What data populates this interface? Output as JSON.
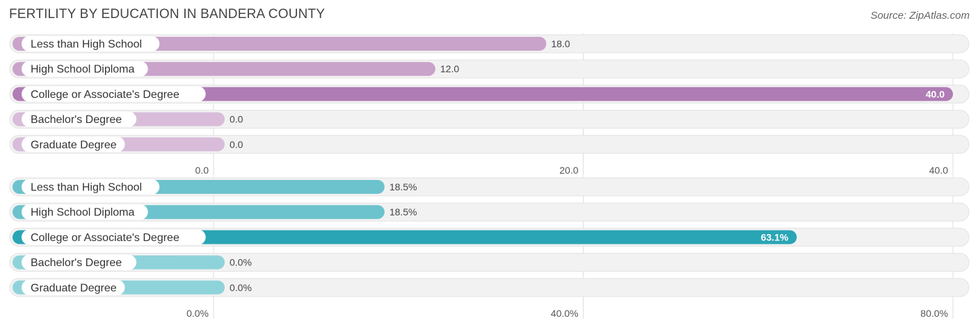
{
  "title": "FERTILITY BY EDUCATION IN BANDERA COUNTY",
  "source": "Source: ZipAtlas.com",
  "chart_data": [
    {
      "type": "bar",
      "orientation": "horizontal",
      "categories": [
        "Less than High School",
        "High School Diploma",
        "College or Associate's Degree",
        "Bachelor's Degree",
        "Graduate Degree"
      ],
      "values": [
        18.0,
        12.0,
        40.0,
        0.0,
        0.0
      ],
      "value_labels": [
        "18.0",
        "12.0",
        "40.0",
        "0.0",
        "0.0"
      ],
      "xlim": [
        0,
        40
      ],
      "ticks": [
        "0.0",
        "20.0",
        "40.0"
      ],
      "tick_values": [
        0,
        20,
        40
      ],
      "colors": [
        "#c9a3ca",
        "#c9a3ca",
        "#b07cb5",
        "#d8bcda",
        "#d8bcda"
      ],
      "highlight_index": 2,
      "grid": true
    },
    {
      "type": "bar",
      "orientation": "horizontal",
      "categories": [
        "Less than High School",
        "High School Diploma",
        "College or Associate's Degree",
        "Bachelor's Degree",
        "Graduate Degree"
      ],
      "values": [
        18.5,
        18.5,
        63.1,
        0.0,
        0.0
      ],
      "value_labels": [
        "18.5%",
        "18.5%",
        "63.1%",
        "0.0%",
        "0.0%"
      ],
      "xlim": [
        0,
        80
      ],
      "ticks": [
        "0.0%",
        "40.0%",
        "80.0%"
      ],
      "tick_values": [
        0,
        40,
        80
      ],
      "colors": [
        "#6cc3cd",
        "#6cc3cd",
        "#2aa5b5",
        "#8fd3da",
        "#8fd3da"
      ],
      "highlight_index": 2,
      "grid": true
    }
  ]
}
